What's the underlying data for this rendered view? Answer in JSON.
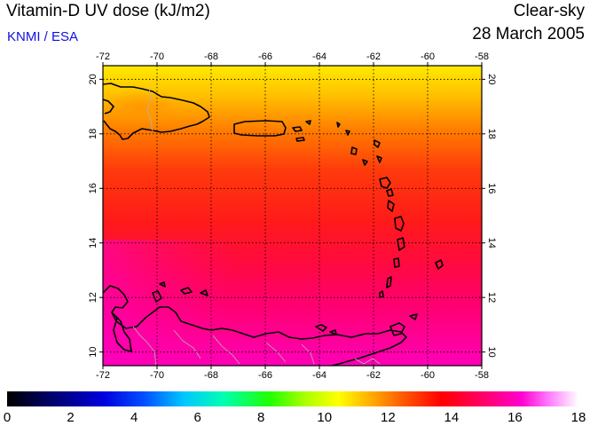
{
  "header": {
    "title": "Vitamin-D UV dose (kJ/m2)",
    "credit": "KNMI / ESA",
    "condition": "Clear-sky",
    "date": "28 March 2005"
  },
  "map": {
    "lon_ticks": [
      "-72",
      "-70",
      "-68",
      "-66",
      "-64",
      "-62",
      "-60",
      "-58"
    ],
    "lat_ticks": [
      "10",
      "12",
      "14",
      "16",
      "18",
      "20"
    ],
    "lon_range": [
      -72,
      -58
    ],
    "lat_range": [
      9.5,
      20.5
    ],
    "grid": true
  },
  "colorbar": {
    "ticks": [
      "0",
      "2",
      "4",
      "6",
      "8",
      "10",
      "12",
      "14",
      "16",
      "18"
    ],
    "range": [
      0,
      18
    ]
  },
  "colors": {
    "credit": "#1010e0",
    "coastline": "#000000",
    "borders": "#b4b4b4"
  }
}
